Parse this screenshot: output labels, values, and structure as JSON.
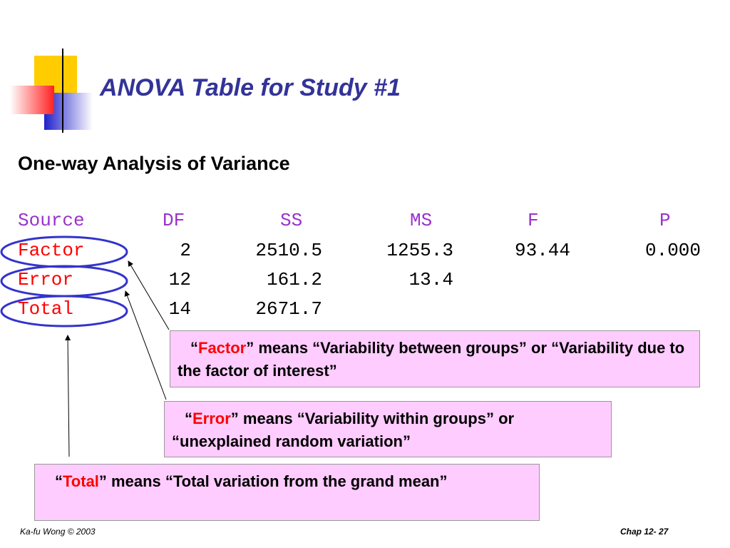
{
  "title": "ANOVA Table for Study #1",
  "subtitle": "One-way Analysis of Variance",
  "table": {
    "header": [
      "Source",
      "DF",
      "SS",
      "MS",
      "F",
      "P"
    ],
    "rows": [
      [
        "Factor",
        "2",
        "2510.5",
        "1255.3",
        "93.44",
        "0.000"
      ],
      [
        "Error",
        "12",
        "161.2",
        "13.4"
      ],
      [
        "Total",
        "14",
        "2671.7"
      ]
    ]
  },
  "notes": [
    {
      "open": "“",
      "term": "Factor",
      "rest": "” means “Variability between groups” or “Variability due to the factor of interest”"
    },
    {
      "open": "“",
      "term": "Error",
      "rest": "” means “Variability within groups” or “unexplained random variation”"
    },
    {
      "open": "“",
      "term": "Total",
      "rest": "” means “Total variation from the grand mean”"
    }
  ],
  "footer": {
    "left": "Ka-fu Wong © 2003",
    "right": "Chap 12- 27"
  }
}
